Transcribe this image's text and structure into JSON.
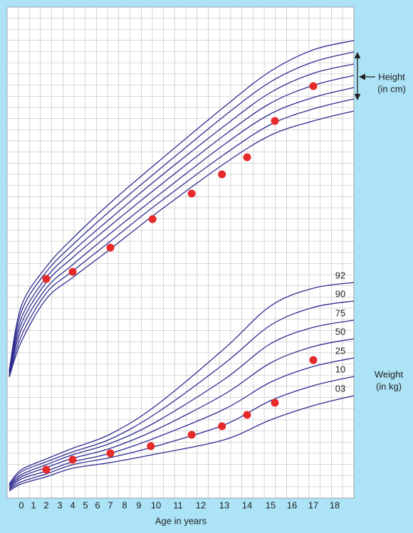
{
  "chart_data": {
    "type": "line",
    "x_label": "Age in years",
    "height_label": [
      "Height",
      "(in cm)"
    ],
    "weight_label": [
      "Weight",
      "(in kg)"
    ],
    "xticks": [
      0,
      1,
      2,
      3,
      4,
      5,
      6,
      7,
      8,
      9,
      10,
      11,
      12,
      13,
      14,
      15,
      16,
      17,
      18
    ],
    "xlim": [
      -1,
      18.9
    ],
    "ylim": [
      0,
      690
    ],
    "line_color": "#2e2b8f",
    "point_color": "#e62a2a",
    "x": [
      -1,
      0,
      2,
      4,
      7,
      10,
      13,
      15,
      17,
      18.9
    ],
    "height_series": [
      {
        "values": [
          180,
          270,
          325,
          365,
          415,
          470,
          550,
          600,
          630,
          643
        ]
      },
      {
        "values": [
          178,
          262,
          318,
          356,
          404,
          458,
          537,
          585,
          613,
          627
        ]
      },
      {
        "values": [
          177,
          253,
          310,
          347,
          393,
          447,
          523,
          570,
          597,
          610
        ]
      },
      {
        "values": [
          175,
          245,
          303,
          338,
          383,
          435,
          510,
          555,
          580,
          594
        ]
      },
      {
        "values": [
          173,
          237,
          295,
          328,
          372,
          423,
          497,
          540,
          563,
          577
        ]
      },
      {
        "values": [
          172,
          228,
          288,
          319,
          361,
          412,
          483,
          525,
          547,
          561
        ]
      },
      {
        "values": [
          170,
          220,
          280,
          310,
          350,
          400,
          470,
          510,
          530,
          544
        ]
      }
    ],
    "weight_series": [
      {
        "name": "92",
        "values": [
          20,
          40,
          55,
          70,
          90,
          130,
          210,
          270,
          295,
          303
        ]
      },
      {
        "name": "90",
        "values": [
          18,
          37,
          51,
          65,
          83,
          119,
          189,
          243,
          268,
          277
        ]
      },
      {
        "name": "75",
        "values": [
          17,
          33,
          47,
          61,
          77,
          107,
          167,
          217,
          240,
          250
        ]
      },
      {
        "name": "50",
        "values": [
          15,
          30,
          43,
          56,
          70,
          96,
          146,
          190,
          213,
          224
        ]
      },
      {
        "name": "25",
        "values": [
          13,
          27,
          38,
          51,
          63,
          85,
          125,
          163,
          185,
          197
        ]
      },
      {
        "name": "10",
        "values": [
          12,
          23,
          34,
          47,
          57,
          73,
          103,
          137,
          158,
          171
        ]
      },
      {
        "name": "03",
        "values": [
          10,
          20,
          30,
          42,
          50,
          62,
          82,
          110,
          130,
          144
        ]
      }
    ],
    "height_points": {
      "x": [
        2,
        4,
        7,
        9.8,
        11.6,
        12.9,
        14,
        15.2,
        17
      ],
      "values": [
        308,
        318,
        352,
        392,
        428,
        455,
        479,
        530,
        579
      ]
    },
    "weight_points": {
      "x": [
        2,
        4,
        7,
        9.7,
        11.6,
        12.9,
        14,
        15.2,
        17
      ],
      "values": [
        40,
        54,
        63,
        73,
        89,
        101,
        117,
        134,
        194
      ]
    }
  }
}
